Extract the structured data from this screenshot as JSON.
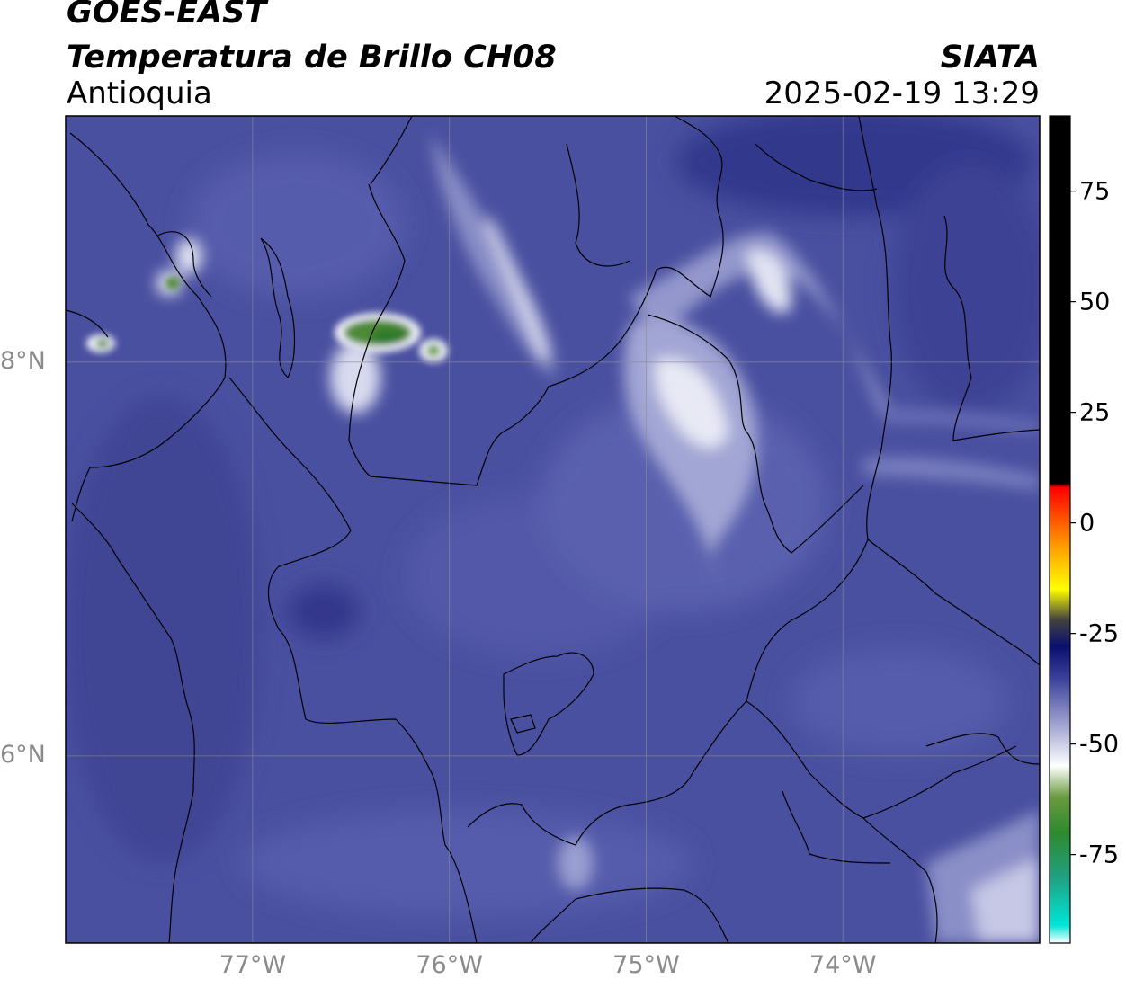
{
  "header": {
    "satellite": "GOES-EAST",
    "product": "Temperatura de Brillo CH08",
    "region": "Antioquia",
    "organization": "SIATA",
    "datetime": "2025-02-19 13:29"
  },
  "map": {
    "lat_ticks": [
      {
        "label": "8°N",
        "value": 8
      },
      {
        "label": "6°N",
        "value": 6
      }
    ],
    "lon_ticks": [
      {
        "label": "77°W",
        "value": -77
      },
      {
        "label": "76°W",
        "value": -76
      },
      {
        "label": "75°W",
        "value": -75
      },
      {
        "label": "74°W",
        "value": -74
      }
    ],
    "lon_range": [
      -77.95,
      -73.0
    ],
    "lat_range": [
      5.05,
      9.25
    ],
    "gridlines": true,
    "background_color": "#4a50a0"
  },
  "colorbar": {
    "range": [
      -95,
      92
    ],
    "ticks": [
      {
        "label": "75",
        "value": 75
      },
      {
        "label": "50",
        "value": 50
      },
      {
        "label": "25",
        "value": 25
      },
      {
        "label": "0",
        "value": 0
      },
      {
        "label": "-25",
        "value": -25
      },
      {
        "label": "-50",
        "value": -50
      },
      {
        "label": "-75",
        "value": -75
      }
    ],
    "stops": [
      {
        "value": -95,
        "color": "#ffffff"
      },
      {
        "value": -91,
        "color": "#00e5d8"
      },
      {
        "value": -80,
        "color": "#20a080"
      },
      {
        "value": -70,
        "color": "#2e8a2e"
      },
      {
        "value": -62,
        "color": "#6a9a40"
      },
      {
        "value": -55,
        "color": "#ffffff"
      },
      {
        "value": -45,
        "color": "#9a9ecc"
      },
      {
        "value": -35,
        "color": "#3a3f9a"
      },
      {
        "value": -28,
        "color": "#0a1070"
      },
      {
        "value": -22,
        "color": "#404040"
      },
      {
        "value": -15,
        "color": "#ffff00"
      },
      {
        "value": -5,
        "color": "#ff9900"
      },
      {
        "value": 8,
        "color": "#ff0000"
      },
      {
        "value": 9,
        "color": "#000000"
      },
      {
        "value": 92,
        "color": "#000000"
      }
    ]
  }
}
